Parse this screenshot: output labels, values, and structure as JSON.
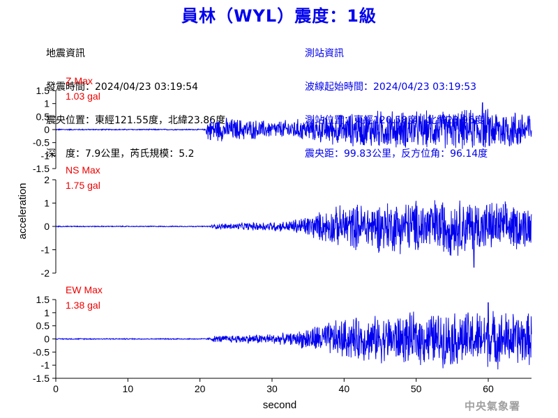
{
  "header": {
    "title": "員林（WYL）震度：1級",
    "earthquake_info": {
      "heading": "地震資訊",
      "origin_time": "發震時間：2024/04/23 03:19:54",
      "epicenter": "震央位置：東經121.55度，北緯23.86度",
      "depth_magnitude": "深　度：7.9公里，芮氏規模：5.2"
    },
    "station_info": {
      "heading": "測站資訊",
      "waveform_start": "波線起始時間：2024/04/23 03:19:53",
      "station_location": "測站位置：東經120.58度，北緯23.96度",
      "distance_azimuth": "震央距：99.83公里，反方位角：96.14度"
    }
  },
  "chart_data": {
    "type": "line",
    "xlabel": "second",
    "ylabel": "acceleration",
    "xlim": [
      0,
      66
    ],
    "xticks": [
      "0",
      "10",
      "20",
      "30",
      "40",
      "50",
      "60"
    ],
    "panels": [
      {
        "name": "Z",
        "label": "Z Max",
        "max_label": "1.03 gal",
        "max_value": 1.03,
        "ylim": [
          -1.5,
          1.5
        ],
        "yticks": [
          "1.5",
          "1",
          "0.5",
          "0",
          "-0.5",
          "-1",
          "-1.5"
        ],
        "envelope": [
          [
            0,
            0.02
          ],
          [
            20.8,
            0.02
          ],
          [
            21.0,
            0.45
          ],
          [
            25,
            0.42
          ],
          [
            30,
            0.32
          ],
          [
            35,
            0.42
          ],
          [
            38,
            0.55
          ],
          [
            45,
            0.72
          ],
          [
            50,
            0.68
          ],
          [
            55,
            0.72
          ],
          [
            60,
            0.78
          ],
          [
            66,
            0.72
          ]
        ]
      },
      {
        "name": "NS",
        "label": "NS Max",
        "max_label": "1.75 gal",
        "max_value": 1.75,
        "ylim": [
          -2,
          2
        ],
        "yticks": [
          "2",
          "1",
          "0",
          "-1",
          "-2"
        ],
        "envelope": [
          [
            0,
            0.02
          ],
          [
            21,
            0.02
          ],
          [
            22,
            0.1
          ],
          [
            28,
            0.18
          ],
          [
            32,
            0.22
          ],
          [
            34,
            0.38
          ],
          [
            36,
            0.55
          ],
          [
            40,
            0.9
          ],
          [
            45,
            1.05
          ],
          [
            50,
            1.1
          ],
          [
            55,
            1.2
          ],
          [
            60,
            1.05
          ],
          [
            66,
            0.9
          ]
        ]
      },
      {
        "name": "EW",
        "label": "EW Max",
        "max_label": "1.38 gal",
        "max_value": 1.38,
        "ylim": [
          -1.5,
          1.5
        ],
        "yticks": [
          "1.5",
          "1",
          "0.5",
          "0",
          "-0.5",
          "-1",
          "-1.5"
        ],
        "envelope": [
          [
            0,
            0.02
          ],
          [
            21,
            0.02
          ],
          [
            22,
            0.12
          ],
          [
            28,
            0.18
          ],
          [
            33,
            0.22
          ],
          [
            35,
            0.45
          ],
          [
            40,
            0.75
          ],
          [
            45,
            0.85
          ],
          [
            50,
            0.95
          ],
          [
            55,
            1.0
          ],
          [
            60,
            1.05
          ],
          [
            66,
            0.95
          ]
        ]
      }
    ]
  },
  "footer": {
    "credit": "中央氣象署"
  },
  "colors": {
    "trace": "#0000ee",
    "title": "#0000ee",
    "max_label": "#ee0000",
    "axis": "#000000",
    "credit": "#a0a0a0"
  }
}
